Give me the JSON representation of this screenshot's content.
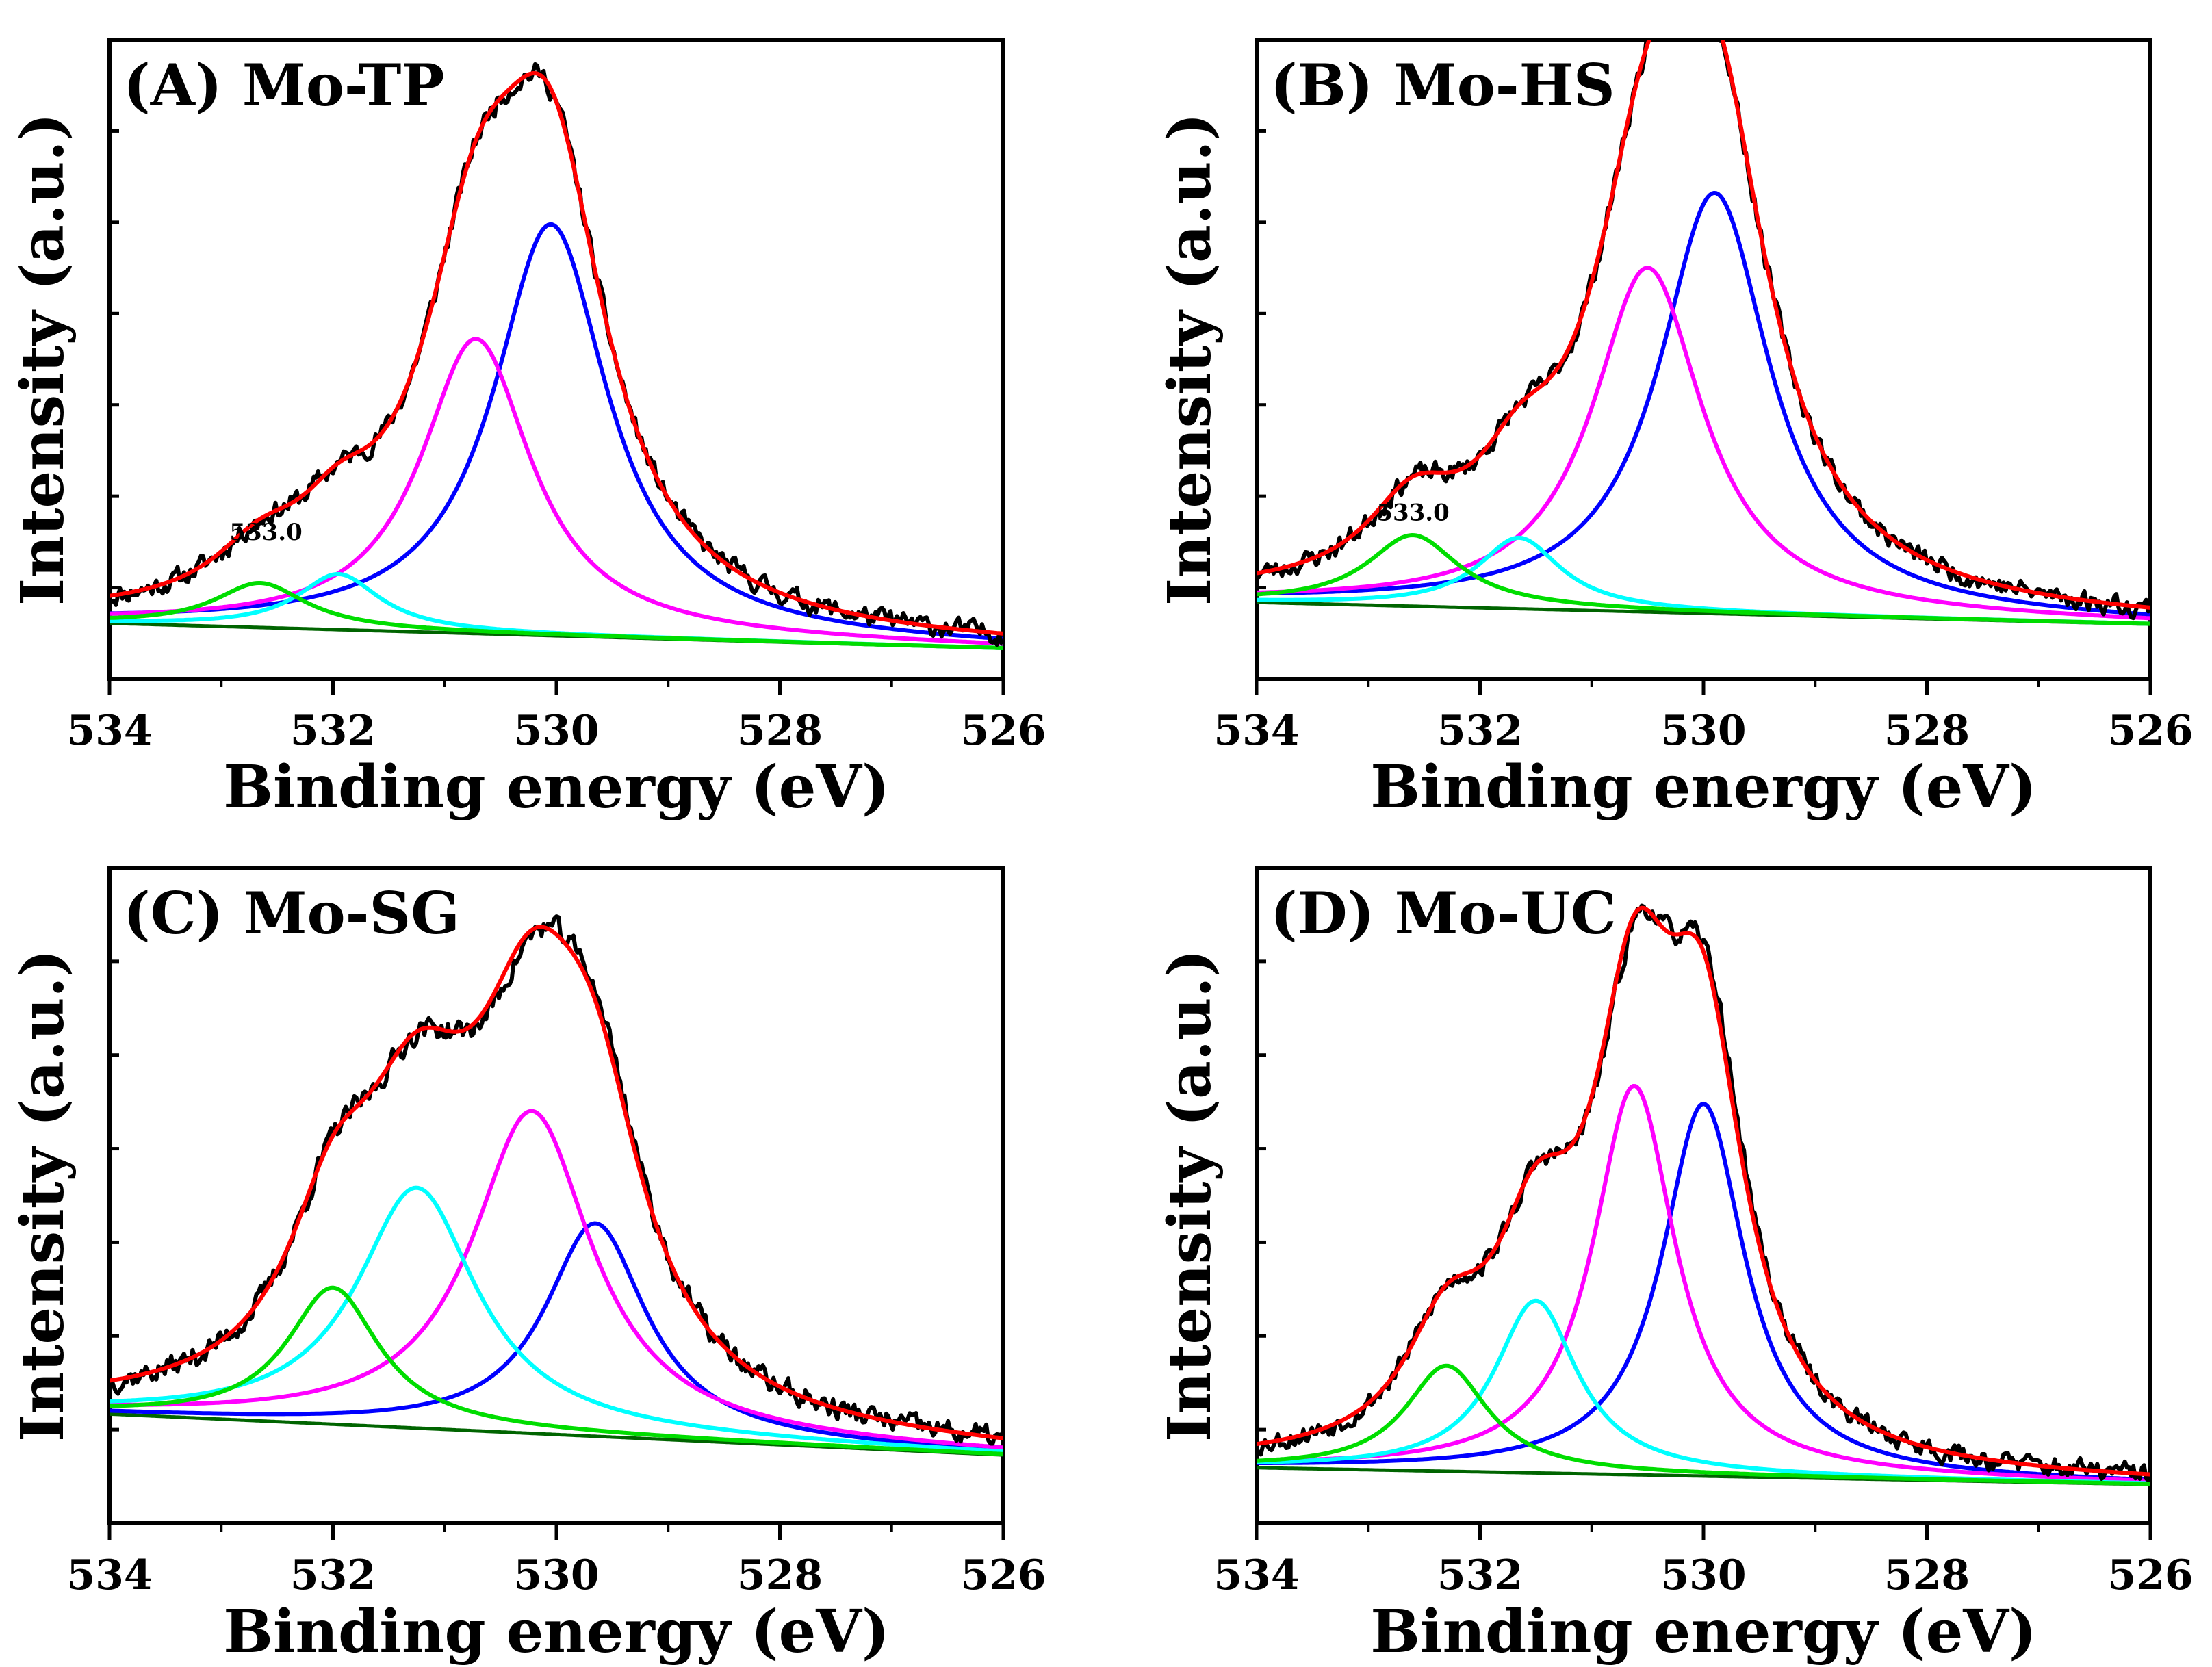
{
  "colors": {
    "raw": "#000000",
    "envelope": "#ff0000",
    "blue": "#0000ff",
    "magenta": "#ff00ff",
    "cyan": "#00ffff",
    "green": "#00dd00",
    "background_line": "#006400",
    "axis": "#000000"
  },
  "chart_data": [
    {
      "type": "line",
      "panel": "A",
      "title": "(A) Mo-TP",
      "xlabel": "Binding energy (eV)",
      "ylabel": "Intensity (a.u.)",
      "xlim": [
        534,
        526
      ],
      "xticks": [
        "534",
        "532",
        "530",
        "528",
        "526"
      ],
      "ylim": [
        -0.1,
        1.05
      ],
      "annotations": [
        {
          "text": "533.0",
          "x": 532.6,
          "y": 0.14
        }
      ],
      "background": {
        "y_start": 0.0,
        "y_end": -0.045
      },
      "components": [
        {
          "name": "blue",
          "center": 530.05,
          "height": 0.74,
          "width": 0.62
        },
        {
          "name": "magenta",
          "center": 530.72,
          "height": 0.53,
          "width": 0.6
        },
        {
          "name": "cyan",
          "center": 531.95,
          "height": 0.1,
          "width": 0.45
        },
        {
          "name": "green",
          "center": 532.65,
          "height": 0.08,
          "width": 0.5
        }
      ],
      "noise": {
        "seed": 11,
        "amp": 0.016,
        "peak_shift": 0.0
      }
    },
    {
      "type": "line",
      "panel": "B",
      "title": "(B) Mo-HS",
      "xlabel": "Binding energy (eV)",
      "ylabel": "Intensity (a.u.)",
      "xlim": [
        534,
        526
      ],
      "xticks": [
        "534",
        "532",
        "530",
        "528",
        "526"
      ],
      "ylim": [
        -0.14,
        1.03
      ],
      "annotations": [
        {
          "text": "533.0",
          "x": 532.6,
          "y": 0.14
        }
      ],
      "background": {
        "y_start": 0.0,
        "y_end": -0.04
      },
      "components": [
        {
          "name": "blue",
          "center": 529.9,
          "height": 0.77,
          "width": 0.6
        },
        {
          "name": "magenta",
          "center": 530.5,
          "height": 0.63,
          "width": 0.6
        },
        {
          "name": "cyan",
          "center": 531.65,
          "height": 0.13,
          "width": 0.45
        },
        {
          "name": "green",
          "center": 532.6,
          "height": 0.13,
          "width": 0.5
        }
      ],
      "noise": {
        "seed": 23,
        "amp": 0.016,
        "peak_shift": 0.0
      }
    },
    {
      "type": "line",
      "panel": "C",
      "title": "(C) Mo-SG",
      "xlabel": "Binding energy (eV)",
      "ylabel": "Intensity (a.u.)",
      "xlim": [
        534,
        526
      ],
      "xticks": [
        "534",
        "532",
        "530",
        "528",
        "526"
      ],
      "ylim": [
        -0.2,
        1.0
      ],
      "annotations": [],
      "background": {
        "y_start": 0.0,
        "y_end": -0.075
      },
      "components": [
        {
          "name": "blue",
          "center": 529.65,
          "height": 0.39,
          "width": 0.55
        },
        {
          "name": "magenta",
          "center": 530.22,
          "height": 0.59,
          "width": 0.65
        },
        {
          "name": "cyan",
          "center": 531.25,
          "height": 0.44,
          "width": 0.65
        },
        {
          "name": "green",
          "center": 532.0,
          "height": 0.25,
          "width": 0.5
        }
      ],
      "noise": {
        "seed": 37,
        "amp": 0.018,
        "peak_shift": 0.05
      }
    },
    {
      "type": "line",
      "panel": "D",
      "title": "(D) Mo-UC",
      "xlabel": "Binding energy (eV)",
      "ylabel": "Intensity (a.u.)",
      "xlim": [
        534,
        526
      ],
      "xticks": [
        "534",
        "532",
        "530",
        "528",
        "526"
      ],
      "ylim": [
        -0.1,
        1.08
      ],
      "annotations": [],
      "background": {
        "y_start": 0.0,
        "y_end": -0.03
      },
      "components": [
        {
          "name": "blue",
          "center": 530.0,
          "height": 0.67,
          "width": 0.45
        },
        {
          "name": "magenta",
          "center": 530.62,
          "height": 0.7,
          "width": 0.45
        },
        {
          "name": "cyan",
          "center": 531.5,
          "height": 0.31,
          "width": 0.45
        },
        {
          "name": "green",
          "center": 532.3,
          "height": 0.19,
          "width": 0.45
        }
      ],
      "noise": {
        "seed": 53,
        "amp": 0.016,
        "peak_shift": 0.03
      }
    }
  ]
}
